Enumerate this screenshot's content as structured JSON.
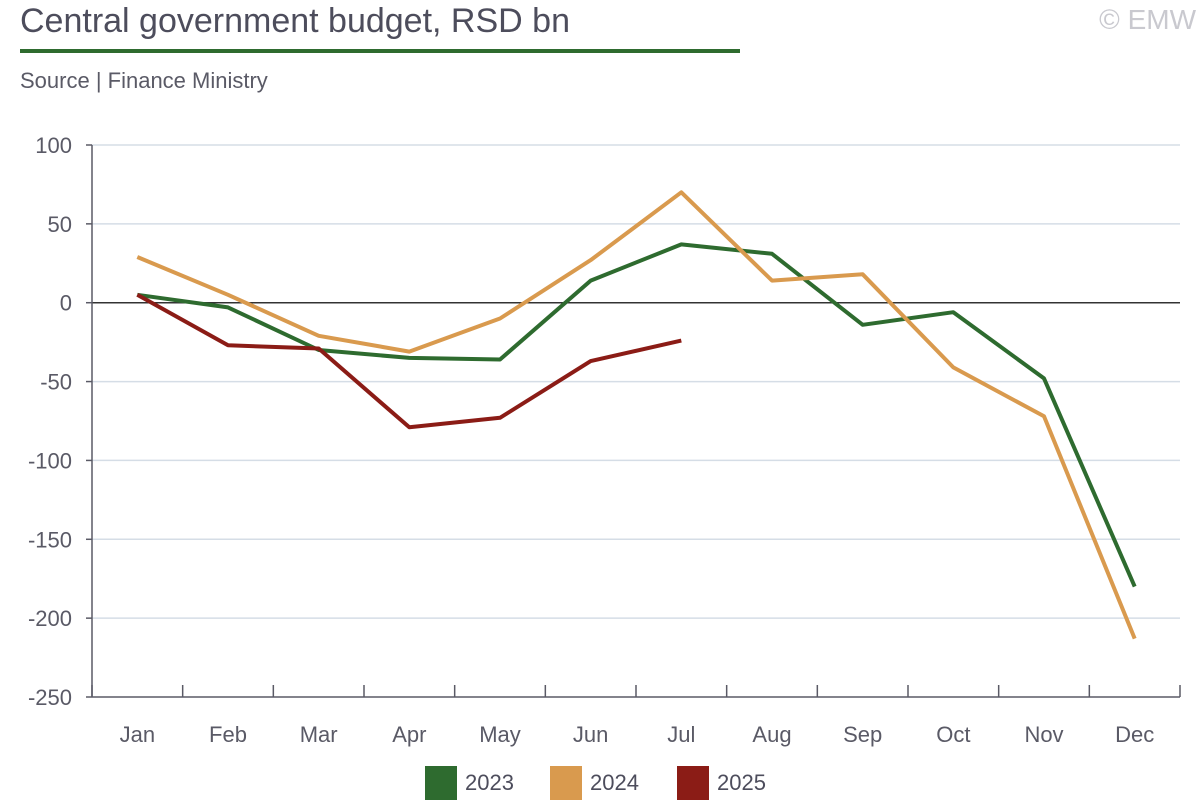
{
  "header": {
    "title": "Central government budget, RSD bn",
    "watermark": "© EMW",
    "source": "Source | Finance Ministry"
  },
  "chart_data": {
    "type": "line",
    "title": "Central government budget, RSD bn",
    "subtitle": "Source | Finance Ministry",
    "categories": [
      "Jan",
      "Feb",
      "Mar",
      "Apr",
      "May",
      "Jun",
      "Jul",
      "Aug",
      "Sep",
      "Oct",
      "Nov",
      "Dec"
    ],
    "ylim": [
      -250,
      100
    ],
    "yticks": [
      "100",
      "50",
      "0",
      "-50",
      "-100",
      "-150",
      "-200",
      "-250"
    ],
    "ytick_values": [
      100,
      50,
      0,
      -50,
      -100,
      -150,
      -200,
      -250
    ],
    "grid": true,
    "legend_position": "bottom",
    "series": [
      {
        "name": "2023",
        "color": "#2e6b2f",
        "values": [
          5,
          -3,
          -30,
          -35,
          -36,
          14,
          37,
          31,
          -14,
          -6,
          -48,
          -180
        ]
      },
      {
        "name": "2024",
        "color": "#d99a4e",
        "values": [
          29,
          5,
          -21,
          -31,
          -10,
          27,
          70,
          14,
          18,
          -41,
          -72,
          -213
        ]
      },
      {
        "name": "2025",
        "color": "#8b1c16",
        "values": [
          5,
          -27,
          -29,
          -79,
          -73,
          -37,
          -24,
          null,
          null,
          null,
          null,
          null
        ]
      }
    ]
  }
}
